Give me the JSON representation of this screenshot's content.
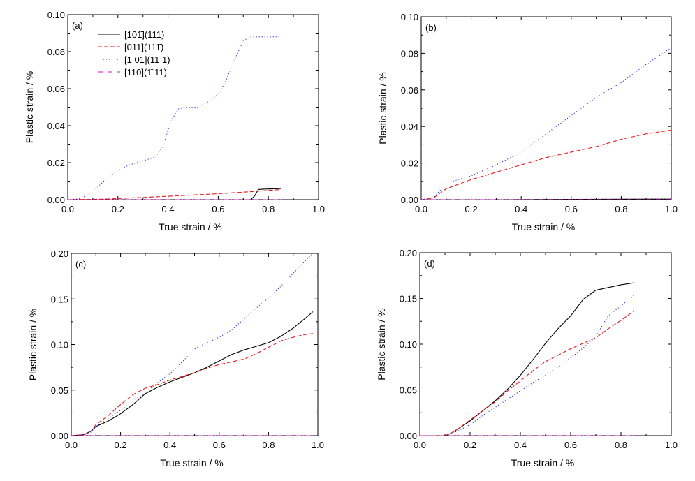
{
  "legend": [
    {
      "key": "s1",
      "label": "[101̄](111)",
      "color": "#000000",
      "dash": "solid"
    },
    {
      "key": "s2",
      "label": "[011](111̄)",
      "color": "#e8161b",
      "dash": "dashed"
    },
    {
      "key": "s3",
      "label": "[1̄ 01](11̄ 1)",
      "color": "#1414d4",
      "dash": "dotted"
    },
    {
      "key": "s4",
      "label": "[110](1̄ 11)",
      "color": "#cc19cc",
      "dash": "dashdot"
    }
  ],
  "chart_data": [
    {
      "type": "line",
      "panel_label": "(a)",
      "xlabel": "True strain / %",
      "ylabel": "Plastic strain / %",
      "xlim": [
        0,
        1.0
      ],
      "ylim": [
        0,
        0.1
      ],
      "xticks": [
        "0.0",
        "0.2",
        "0.4",
        "0.6",
        "0.8",
        "1.0"
      ],
      "yticks": [
        "0.00",
        "0.02",
        "0.04",
        "0.06",
        "0.08",
        "0.10"
      ],
      "legend_position": "top-left",
      "series": [
        {
          "key": "s1",
          "x": [
            0,
            0.2,
            0.4,
            0.6,
            0.73,
            0.745,
            0.76,
            0.78,
            0.85
          ],
          "y": [
            0,
            0,
            0,
            0,
            0,
            0.002,
            0.0055,
            0.0057,
            0.006
          ]
        },
        {
          "key": "s2",
          "x": [
            0,
            0.15,
            0.3,
            0.45,
            0.6,
            0.75,
            0.85
          ],
          "y": [
            0,
            0.0003,
            0.0012,
            0.0022,
            0.0032,
            0.0045,
            0.0055
          ]
        },
        {
          "key": "s3",
          "x": [
            0,
            0.05,
            0.1,
            0.15,
            0.2,
            0.25,
            0.3,
            0.35,
            0.38,
            0.41,
            0.44,
            0.47,
            0.52,
            0.56,
            0.6,
            0.63,
            0.66,
            0.7,
            0.73,
            0.76,
            0.8,
            0.85
          ],
          "y": [
            0,
            0.0005,
            0.004,
            0.011,
            0.016,
            0.019,
            0.021,
            0.023,
            0.029,
            0.042,
            0.049,
            0.05,
            0.05,
            0.053,
            0.057,
            0.064,
            0.074,
            0.086,
            0.088,
            0.088,
            0.088,
            0.088
          ]
        },
        {
          "key": "s4",
          "x": [
            0,
            0.85
          ],
          "y": [
            0,
            0
          ]
        }
      ]
    },
    {
      "type": "line",
      "panel_label": "(b)",
      "xlabel": "True strain / %",
      "ylabel": "Plastic strain / %",
      "xlim": [
        0,
        1.0
      ],
      "ylim": [
        0,
        0.1
      ],
      "xticks": [
        "0.0",
        "0.2",
        "0.4",
        "0.6",
        "0.8",
        "1.0"
      ],
      "yticks": [
        "0.00",
        "0.02",
        "0.04",
        "0.06",
        "0.08",
        "0.10"
      ],
      "series": [
        {
          "key": "s1",
          "x": [
            0,
            0.3,
            0.6,
            1.0
          ],
          "y": [
            0,
            0,
            0.0002,
            0.0003
          ]
        },
        {
          "key": "s2",
          "x": [
            0,
            0.05,
            0.1,
            0.2,
            0.3,
            0.4,
            0.5,
            0.6,
            0.7,
            0.8,
            0.9,
            1.0
          ],
          "y": [
            0,
            0.001,
            0.006,
            0.011,
            0.015,
            0.019,
            0.023,
            0.026,
            0.029,
            0.033,
            0.036,
            0.038
          ]
        },
        {
          "key": "s3",
          "x": [
            0,
            0.05,
            0.1,
            0.2,
            0.3,
            0.4,
            0.5,
            0.6,
            0.7,
            0.8,
            0.9,
            1.0
          ],
          "y": [
            0,
            0.001,
            0.009,
            0.013,
            0.019,
            0.026,
            0.036,
            0.046,
            0.056,
            0.064,
            0.074,
            0.083
          ]
        },
        {
          "key": "s4",
          "x": [
            0,
            1.0
          ],
          "y": [
            0,
            0
          ]
        }
      ]
    },
    {
      "type": "line",
      "panel_label": "(c)",
      "xlabel": "True strain / %",
      "ylabel": "Plastic strain / %",
      "xlim": [
        0,
        1.0
      ],
      "ylim": [
        0,
        0.2
      ],
      "xticks": [
        "0.0",
        "0.2",
        "0.4",
        "0.6",
        "0.8",
        "1.0"
      ],
      "yticks": [
        "0.00",
        "0.05",
        "0.10",
        "0.15",
        "0.20"
      ],
      "series": [
        {
          "key": "s1",
          "x": [
            0,
            0.05,
            0.08,
            0.1,
            0.15,
            0.2,
            0.25,
            0.3,
            0.35,
            0.4,
            0.45,
            0.5,
            0.55,
            0.6,
            0.65,
            0.7,
            0.75,
            0.8,
            0.85,
            0.9,
            0.95,
            0.98
          ],
          "y": [
            0,
            0.001,
            0.005,
            0.01,
            0.016,
            0.024,
            0.034,
            0.046,
            0.053,
            0.059,
            0.064,
            0.069,
            0.075,
            0.082,
            0.089,
            0.094,
            0.098,
            0.102,
            0.109,
            0.118,
            0.129,
            0.136
          ]
        },
        {
          "key": "s2",
          "x": [
            0,
            0.05,
            0.08,
            0.1,
            0.15,
            0.2,
            0.25,
            0.3,
            0.35,
            0.4,
            0.45,
            0.5,
            0.55,
            0.6,
            0.65,
            0.7,
            0.75,
            0.8,
            0.85,
            0.9,
            0.95,
            0.98
          ],
          "y": [
            0,
            0.001,
            0.005,
            0.012,
            0.022,
            0.034,
            0.045,
            0.052,
            0.056,
            0.061,
            0.065,
            0.069,
            0.074,
            0.078,
            0.081,
            0.084,
            0.09,
            0.097,
            0.104,
            0.108,
            0.111,
            0.112
          ]
        },
        {
          "key": "s3",
          "x": [
            0,
            0.05,
            0.08,
            0.1,
            0.15,
            0.2,
            0.25,
            0.3,
            0.35,
            0.4,
            0.45,
            0.5,
            0.55,
            0.6,
            0.65,
            0.7,
            0.75,
            0.8,
            0.85,
            0.9,
            0.95,
            0.98
          ],
          "y": [
            0,
            0.001,
            0.004,
            0.01,
            0.019,
            0.028,
            0.038,
            0.047,
            0.058,
            0.068,
            0.081,
            0.095,
            0.102,
            0.108,
            0.116,
            0.128,
            0.14,
            0.151,
            0.164,
            0.178,
            0.192,
            0.2
          ]
        },
        {
          "key": "s4",
          "x": [
            0,
            0.98
          ],
          "y": [
            0,
            0
          ]
        }
      ]
    },
    {
      "type": "line",
      "panel_label": "(d)",
      "xlabel": "True strain / %",
      "ylabel": "Plastic strain / %",
      "xlim": [
        0,
        1.0
      ],
      "ylim": [
        0,
        0.2
      ],
      "xticks": [
        "0.0",
        "0.2",
        "0.4",
        "0.6",
        "0.8",
        "1.0"
      ],
      "yticks": [
        "0.00",
        "0.05",
        "0.10",
        "0.15",
        "0.20"
      ],
      "series": [
        {
          "key": "s1",
          "x": [
            0,
            0.1,
            0.12,
            0.15,
            0.2,
            0.25,
            0.3,
            0.35,
            0.4,
            0.45,
            0.5,
            0.55,
            0.6,
            0.65,
            0.7,
            0.75,
            0.8,
            0.85
          ],
          "y": [
            0,
            0,
            0.002,
            0.007,
            0.016,
            0.027,
            0.038,
            0.051,
            0.066,
            0.083,
            0.101,
            0.117,
            0.131,
            0.149,
            0.159,
            0.162,
            0.165,
            0.167
          ]
        },
        {
          "key": "s2",
          "x": [
            0,
            0.1,
            0.12,
            0.15,
            0.2,
            0.25,
            0.3,
            0.35,
            0.4,
            0.45,
            0.5,
            0.55,
            0.6,
            0.65,
            0.7,
            0.75,
            0.8,
            0.85
          ],
          "y": [
            0,
            0,
            0.002,
            0.007,
            0.017,
            0.027,
            0.037,
            0.049,
            0.06,
            0.071,
            0.081,
            0.088,
            0.095,
            0.101,
            0.107,
            0.117,
            0.126,
            0.136
          ]
        },
        {
          "key": "s3",
          "x": [
            0,
            0.1,
            0.12,
            0.15,
            0.2,
            0.25,
            0.3,
            0.35,
            0.4,
            0.45,
            0.5,
            0.55,
            0.6,
            0.65,
            0.7,
            0.72,
            0.75,
            0.8,
            0.85
          ],
          "y": [
            0,
            0,
            0.002,
            0.005,
            0.012,
            0.022,
            0.031,
            0.04,
            0.049,
            0.058,
            0.066,
            0.075,
            0.085,
            0.096,
            0.108,
            0.118,
            0.131,
            0.142,
            0.153
          ]
        },
        {
          "key": "s4",
          "x": [
            0,
            0.85
          ],
          "y": [
            0,
            0
          ]
        }
      ]
    }
  ]
}
